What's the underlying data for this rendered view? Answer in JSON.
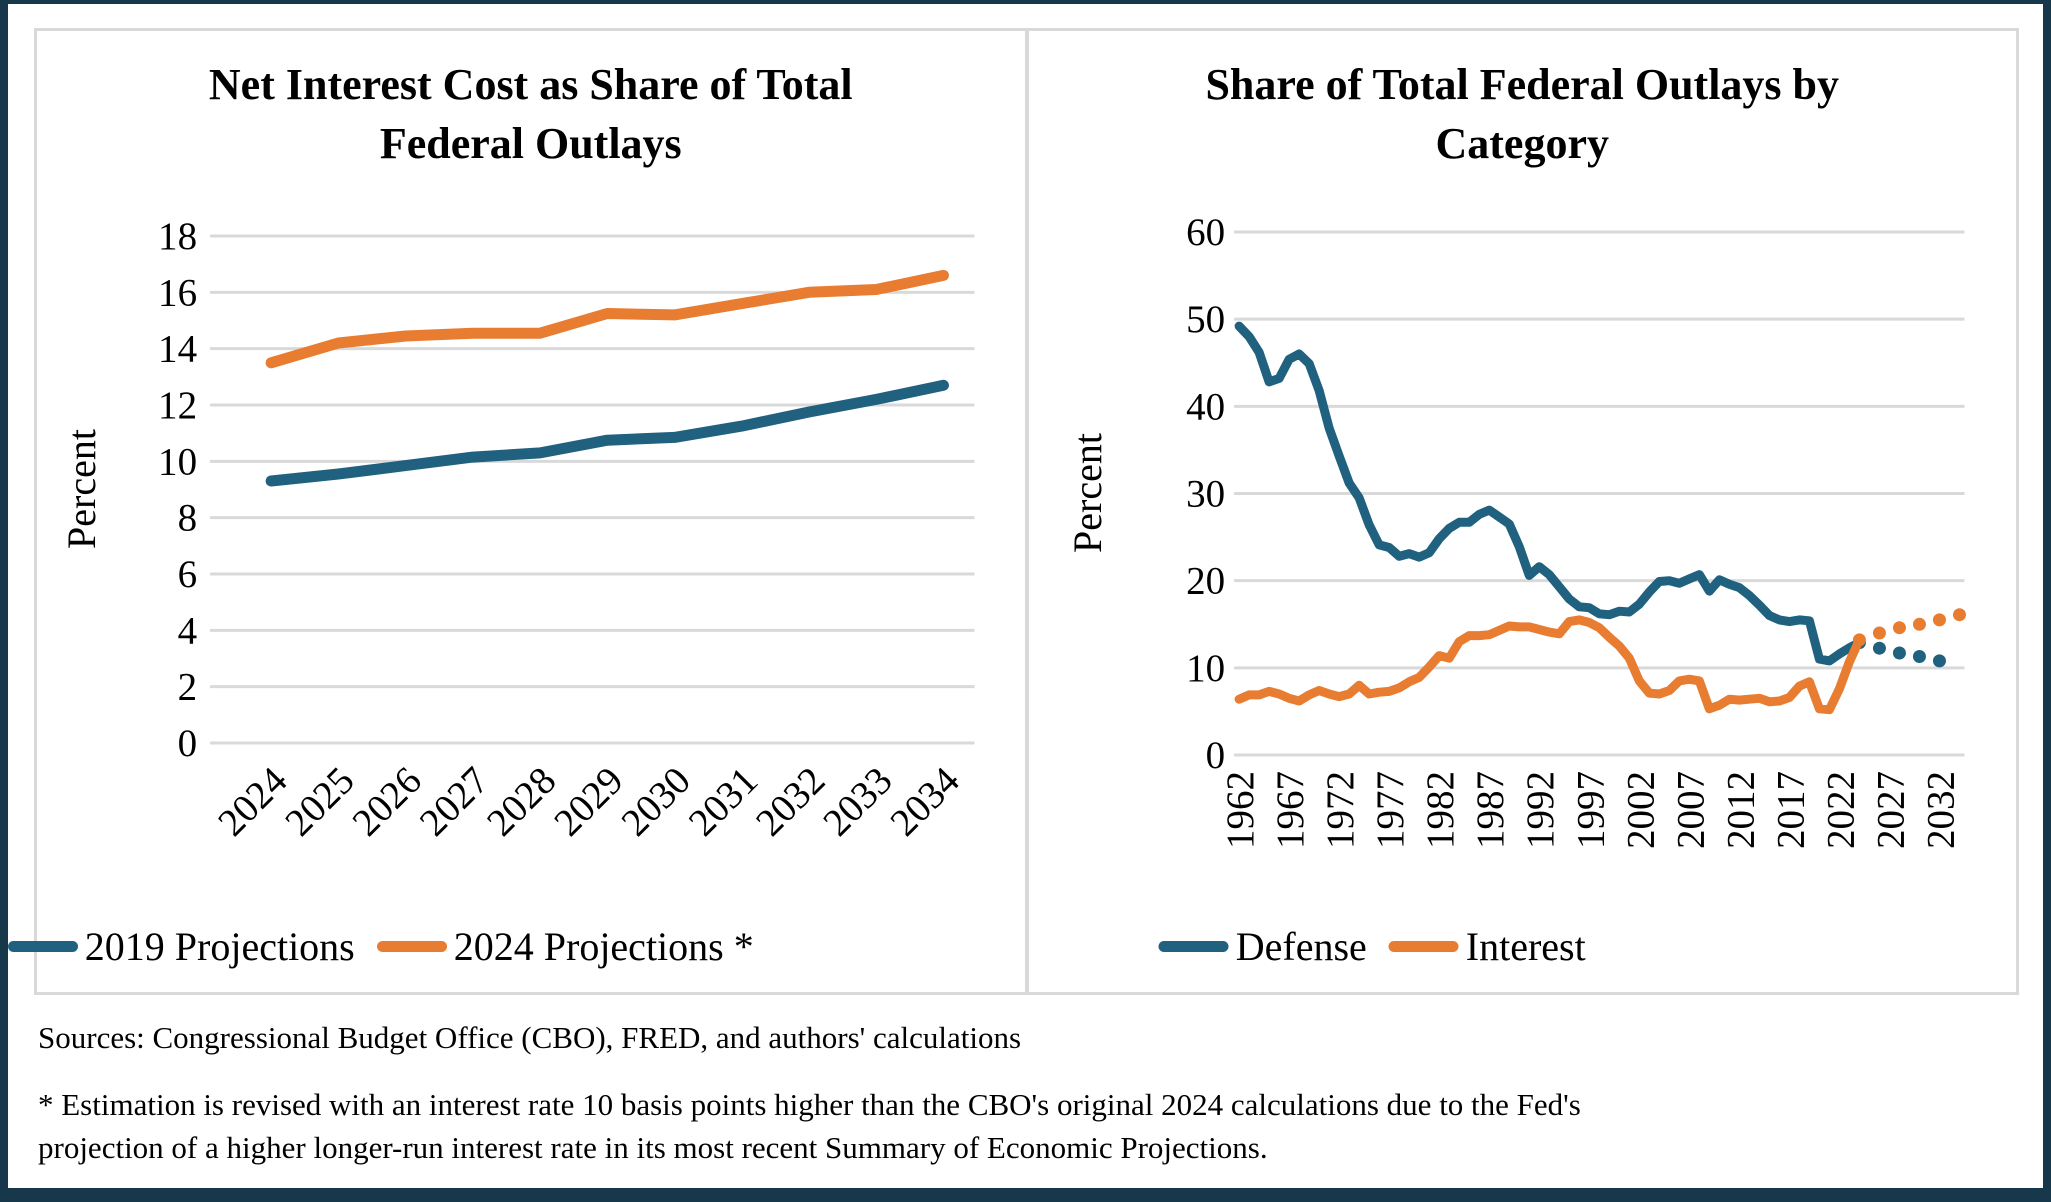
{
  "page": {
    "colors": {
      "frame_navy": "#16384A",
      "panel_border_gray": "#D9D9D9",
      "gridline_gray": "#D9D9D9",
      "series_blue": "#1F617F",
      "series_orange": "#E87C30"
    },
    "footer": {
      "sources": "Sources: Congressional Budget Office (CBO), FRED, and authors' calculations",
      "footnote_line1": "* Estimation is revised with an interest rate 10 basis points higher than the CBO's original 2024 calculations due to the Fed's",
      "footnote_line2": "projection of a higher longer-run interest rate in its most recent Summary of Economic Projections."
    }
  },
  "chart_data": [
    {
      "type": "line",
      "title": "Net Interest Cost as Share of Total Federal Outlays",
      "title_line1": "Net Interest Cost as Share of Total",
      "title_line2": "Federal Outlays",
      "ylabel": "Percent",
      "xlabel": "",
      "ylim": [
        0,
        18
      ],
      "ystep": 2,
      "grid": true,
      "legend_position": "bottom",
      "categories": [
        2024,
        2025,
        2026,
        2027,
        2028,
        2029,
        2030,
        2031,
        2032,
        2033,
        2034
      ],
      "xticks": [
        2024,
        2025,
        2026,
        2027,
        2028,
        2029,
        2030,
        2031,
        2032,
        2033,
        2034
      ],
      "series": [
        {
          "name": "2019 Projections",
          "color": "#1F617F",
          "values": [
            9.3,
            9.55,
            9.85,
            10.15,
            10.3,
            10.75,
            10.85,
            11.25,
            11.75,
            12.2,
            12.7
          ]
        },
        {
          "name": "2024 Projections *",
          "color": "#E87C30",
          "values": [
            13.5,
            14.2,
            14.45,
            14.55,
            14.55,
            15.25,
            15.2,
            15.6,
            16.0,
            16.1,
            16.6
          ]
        }
      ]
    },
    {
      "type": "line",
      "title": "Share of Total Federal Outlays by Category",
      "title_line1": "Share of Total Federal Outlays by",
      "title_line2": "Category",
      "ylabel": "Percent",
      "xlabel": "",
      "ylim": [
        0,
        60
      ],
      "ystep": 10,
      "grid": true,
      "legend_position": "bottom",
      "projection_start": 2024,
      "projection_style": "dotted markers every 2 years after 2024",
      "categories": [
        1962,
        1963,
        1964,
        1965,
        1966,
        1967,
        1968,
        1969,
        1970,
        1971,
        1972,
        1973,
        1974,
        1975,
        1976,
        1977,
        1978,
        1979,
        1980,
        1981,
        1982,
        1983,
        1984,
        1985,
        1986,
        1987,
        1988,
        1989,
        1990,
        1991,
        1992,
        1993,
        1994,
        1995,
        1996,
        1997,
        1998,
        1999,
        2000,
        2001,
        2002,
        2003,
        2004,
        2005,
        2006,
        2007,
        2008,
        2009,
        2010,
        2011,
        2012,
        2013,
        2014,
        2015,
        2016,
        2017,
        2018,
        2019,
        2020,
        2021,
        2022,
        2023,
        2024,
        2025,
        2026,
        2027,
        2028,
        2029,
        2030,
        2031,
        2032,
        2033,
        2034
      ],
      "xticks": [
        1962,
        1967,
        1972,
        1977,
        1982,
        1987,
        1992,
        1997,
        2002,
        2007,
        2012,
        2017,
        2022,
        2027,
        2032
      ],
      "series": [
        {
          "name": "Defense",
          "color": "#1F617F",
          "values": [
            49.2,
            48.0,
            46.2,
            42.8,
            43.2,
            45.4,
            46.0,
            44.9,
            41.8,
            37.5,
            34.3,
            31.2,
            29.5,
            26.4,
            24.1,
            23.8,
            22.8,
            23.1,
            22.7,
            23.2,
            24.8,
            26.0,
            26.7,
            26.7,
            27.6,
            28.1,
            27.3,
            26.5,
            23.9,
            20.6,
            21.6,
            20.7,
            19.3,
            17.9,
            17.0,
            16.9,
            16.2,
            16.1,
            16.5,
            16.4,
            17.3,
            18.7,
            19.9,
            20.0,
            19.7,
            20.2,
            20.7,
            18.8,
            20.1,
            19.6,
            19.2,
            18.3,
            17.2,
            16.0,
            15.5,
            15.3,
            15.5,
            15.4,
            11.0,
            10.8,
            11.6,
            12.3,
            12.9,
            12.55,
            12.25,
            11.95,
            11.7,
            11.5,
            11.3,
            11.05,
            10.8,
            null,
            null
          ]
        },
        {
          "name": "Interest",
          "color": "#E87C30",
          "values": [
            6.4,
            6.9,
            6.9,
            7.3,
            7.0,
            6.5,
            6.2,
            6.9,
            7.4,
            7.0,
            6.7,
            7.0,
            8.0,
            7.0,
            7.2,
            7.3,
            7.7,
            8.4,
            8.9,
            10.1,
            11.4,
            11.1,
            13.0,
            13.7,
            13.7,
            13.8,
            14.3,
            14.8,
            14.7,
            14.7,
            14.4,
            14.1,
            13.9,
            15.3,
            15.5,
            15.2,
            14.6,
            13.5,
            12.5,
            11.1,
            8.5,
            7.1,
            7.0,
            7.4,
            8.5,
            8.7,
            8.5,
            5.3,
            5.7,
            6.4,
            6.3,
            6.4,
            6.5,
            6.1,
            6.2,
            6.6,
            7.9,
            8.4,
            5.3,
            5.2,
            7.6,
            10.7,
            13.2,
            13.6,
            14.0,
            14.3,
            14.6,
            14.8,
            15.0,
            15.25,
            15.5,
            15.8,
            16.1
          ]
        }
      ]
    }
  ]
}
